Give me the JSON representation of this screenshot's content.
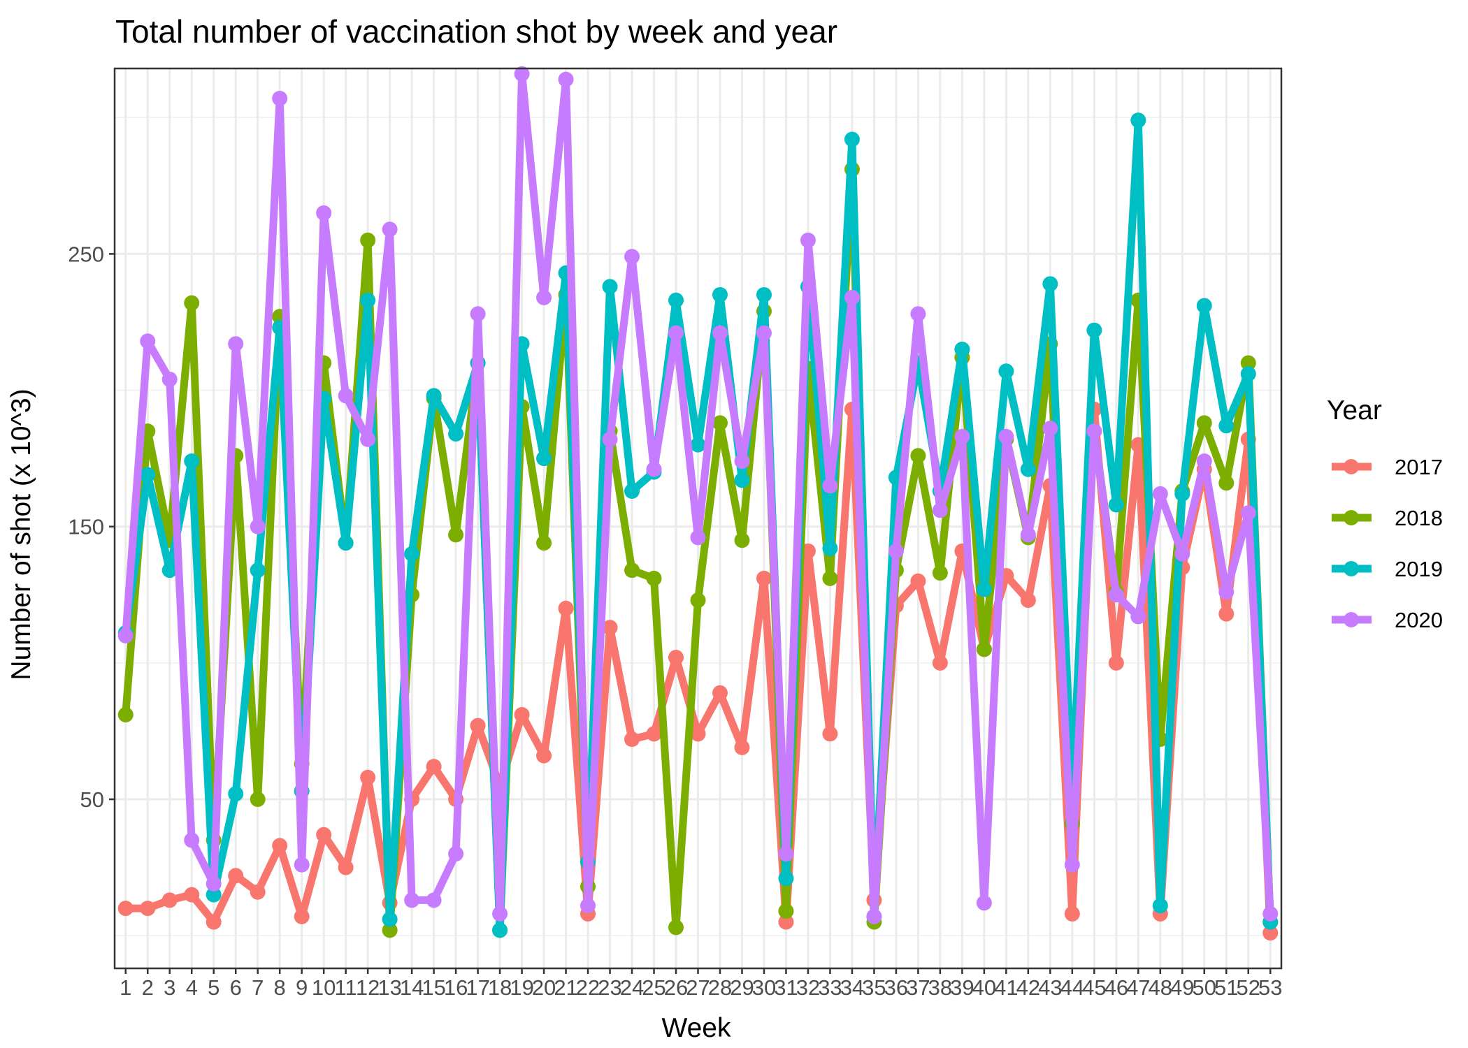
{
  "chart_data": {
    "type": "line",
    "title": "Total number of vaccination shot by week and year",
    "xlabel": "Week",
    "ylabel": "Number of shot (x 10^3)",
    "x": [
      1,
      2,
      3,
      4,
      5,
      6,
      7,
      8,
      9,
      10,
      11,
      12,
      13,
      14,
      15,
      16,
      17,
      18,
      19,
      20,
      21,
      22,
      23,
      24,
      25,
      26,
      27,
      28,
      29,
      30,
      31,
      32,
      33,
      34,
      35,
      36,
      37,
      38,
      39,
      40,
      41,
      42,
      43,
      44,
      45,
      46,
      47,
      48,
      49,
      50,
      51,
      52,
      53
    ],
    "x_tick_labels": [
      "1",
      "2",
      "3",
      "4",
      "5",
      "6",
      "7",
      "8",
      "9",
      "10",
      "11",
      "12",
      "13",
      "14",
      "15",
      "16",
      "17",
      "18",
      "19",
      "20",
      "21",
      "22",
      "23",
      "24",
      "25",
      "26",
      "27",
      "28",
      "29",
      "30",
      "31",
      "32",
      "33",
      "34",
      "35",
      "36",
      "37",
      "38",
      "39",
      "40",
      "41",
      "42",
      "43",
      "44",
      "45",
      "46",
      "47",
      "48",
      "49",
      "50",
      "51",
      "52",
      "53"
    ],
    "xlim": [
      0.5,
      53.5
    ],
    "ylim": [
      -12,
      318
    ],
    "y_ticks": [
      50,
      150,
      250
    ],
    "y_tick_labels": [
      "50",
      "150",
      "250"
    ],
    "grid": true,
    "legend_title": "Year",
    "legend_position": "right",
    "series": [
      {
        "name": "2017",
        "color": "#F8766D",
        "values": [
          10,
          10,
          13,
          15,
          5,
          22,
          16,
          33,
          7,
          37,
          25,
          58,
          12,
          50,
          62,
          50,
          77,
          55,
          81,
          66,
          120,
          8,
          113,
          72,
          74,
          102,
          74,
          89,
          69,
          131,
          5,
          141,
          74,
          193,
          13,
          121,
          130,
          100,
          141,
          105,
          132,
          123,
          165,
          8,
          193,
          100,
          180,
          8,
          135,
          171,
          118,
          182,
          1
        ]
      },
      {
        "name": "2018",
        "color": "#7CAE00",
        "values": [
          81,
          185,
          145,
          232,
          35,
          176,
          50,
          227,
          63,
          210,
          144,
          255,
          2,
          125,
          197,
          147,
          210,
          2,
          194,
          144,
          235,
          18,
          185,
          134,
          131,
          3,
          123,
          188,
          145,
          229,
          9,
          208,
          131,
          281,
          5,
          134,
          176,
          133,
          212,
          105,
          182,
          146,
          217,
          41,
          185,
          126,
          233,
          72,
          163,
          188,
          166,
          210,
          5
        ]
      },
      {
        "name": "2019",
        "color": "#00BFC4",
        "values": [
          111,
          169,
          134,
          174,
          15,
          52,
          134,
          223,
          53,
          197,
          144,
          233,
          6,
          140,
          198,
          184,
          210,
          2,
          217,
          175,
          243,
          27,
          238,
          163,
          170,
          233,
          180,
          235,
          167,
          235,
          21,
          238,
          142,
          292,
          7,
          168,
          210,
          163,
          215,
          127,
          207,
          171,
          239,
          52,
          222,
          158,
          299,
          11,
          162,
          231,
          187,
          206,
          5
        ]
      },
      {
        "name": "2020",
        "color": "#C77CFF",
        "values": [
          110,
          218,
          204,
          35,
          19,
          217,
          150,
          307,
          26,
          265,
          198,
          182,
          259,
          13,
          13,
          30,
          228,
          8,
          316,
          234,
          314,
          11,
          182,
          249,
          171,
          221,
          146,
          221,
          174,
          221,
          30,
          255,
          165,
          234,
          7,
          141,
          228,
          156,
          183,
          12,
          183,
          147,
          186,
          26,
          185,
          125,
          117,
          162,
          140,
          174,
          126,
          155,
          8
        ]
      }
    ]
  }
}
